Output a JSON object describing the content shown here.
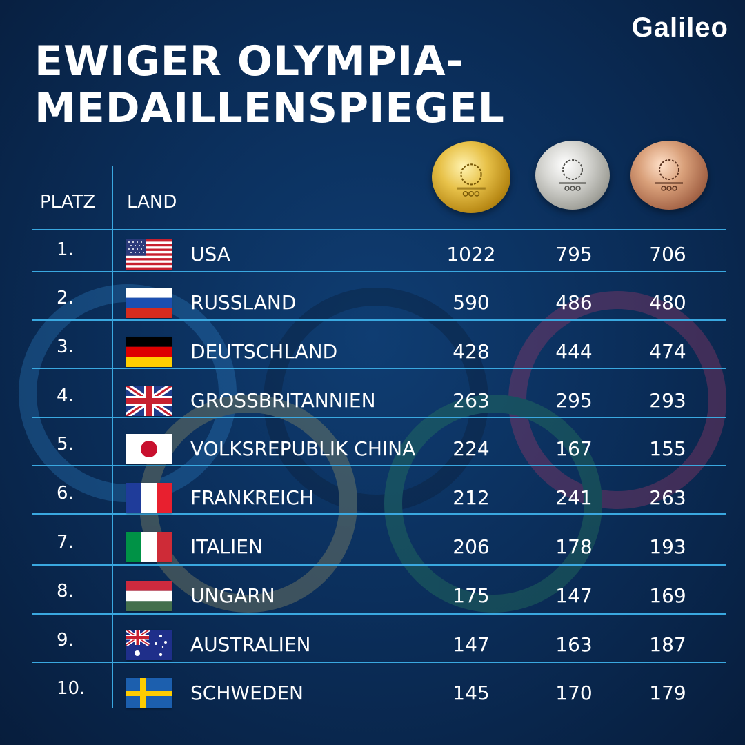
{
  "brand": "Galileo",
  "title": [
    "EWIGER OLYMPIA-",
    "MEDAILLENSPIEGEL"
  ],
  "headers": {
    "rank": "PLATZ",
    "country": "LAND"
  },
  "medals": [
    "gold",
    "silver",
    "bronze"
  ],
  "colors": {
    "divider": "#3aa8e0",
    "background": "#0b2f5c"
  },
  "rows": [
    {
      "rank": "1.",
      "country": "USA",
      "flag": "usa-flag",
      "gold": "1022",
      "silver": "795",
      "bronze": "706"
    },
    {
      "rank": "2.",
      "country": "RUSSLAND",
      "flag": "russia-flag",
      "gold": "590",
      "silver": "486",
      "bronze": "480"
    },
    {
      "rank": "3.",
      "country": "DEUTSCHLAND",
      "flag": "germany-flag",
      "gold": "428",
      "silver": "444",
      "bronze": "474"
    },
    {
      "rank": "4.",
      "country": "GROSSBRITANNIEN",
      "flag": "uk-flag",
      "gold": "263",
      "silver": "295",
      "bronze": "293"
    },
    {
      "rank": "5.",
      "country": "VOLKSREPUBLIK CHINA",
      "flag": "japan-flag",
      "gold": "224",
      "silver": "167",
      "bronze": "155"
    },
    {
      "rank": "6.",
      "country": "FRANKREICH",
      "flag": "france-flag",
      "gold": "212",
      "silver": "241",
      "bronze": "263"
    },
    {
      "rank": "7.",
      "country": "ITALIEN",
      "flag": "italy-flag",
      "gold": "206",
      "silver": "178",
      "bronze": "193"
    },
    {
      "rank": "8.",
      "country": "UNGARN",
      "flag": "hungary-flag",
      "gold": "175",
      "silver": "147",
      "bronze": "169"
    },
    {
      "rank": "9.",
      "country": "AUSTRALIEN",
      "flag": "australia-flag",
      "gold": "147",
      "silver": "163",
      "bronze": "187"
    },
    {
      "rank": "10.",
      "country": "SCHWEDEN",
      "flag": "sweden-flag",
      "gold": "145",
      "silver": "170",
      "bronze": "179"
    }
  ]
}
